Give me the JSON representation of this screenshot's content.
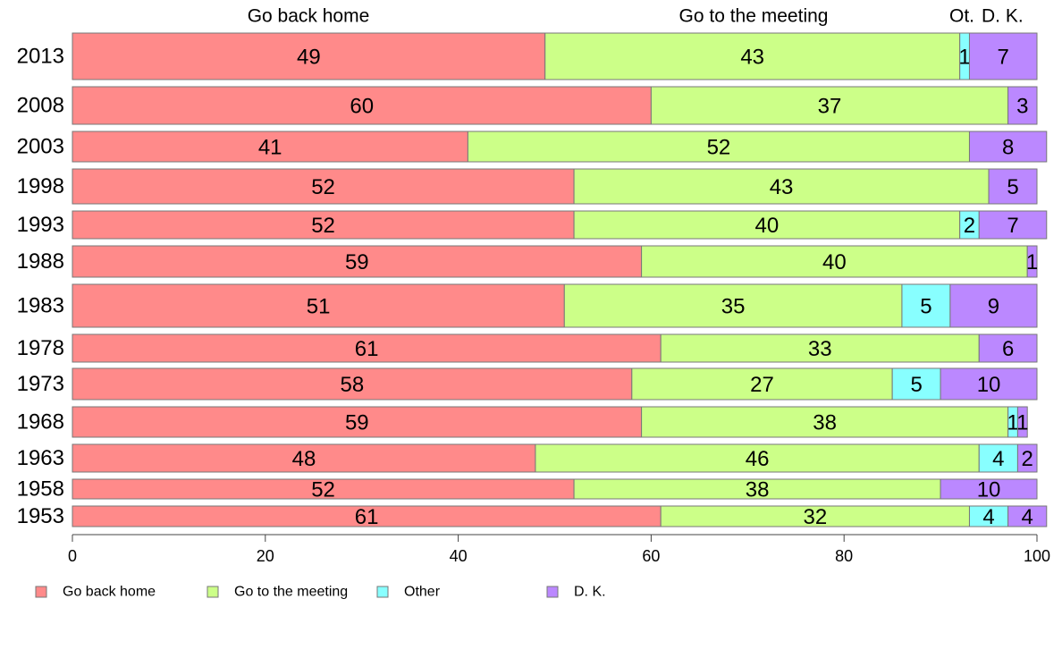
{
  "chart_data": {
    "type": "bar",
    "orientation": "horizontal",
    "stacked": true,
    "categories": [
      "2013",
      "2008",
      "2003",
      "1998",
      "1993",
      "1988",
      "1983",
      "1978",
      "1973",
      "1968",
      "1963",
      "1958",
      "1953"
    ],
    "series": [
      {
        "name": "Go back home",
        "color": "#ff8a8a",
        "values": [
          49,
          60,
          41,
          52,
          52,
          59,
          51,
          61,
          58,
          59,
          48,
          52,
          61
        ]
      },
      {
        "name": "Go to the meeting",
        "color": "#ccff88",
        "values": [
          43,
          37,
          52,
          43,
          40,
          40,
          35,
          33,
          27,
          38,
          46,
          38,
          32
        ]
      },
      {
        "name": "Other",
        "color": "#88ffff",
        "values": [
          1,
          0,
          0,
          0,
          2,
          0,
          5,
          0,
          5,
          1,
          4,
          0,
          4
        ]
      },
      {
        "name": "D. K.",
        "color": "#bb88ff",
        "values": [
          7,
          3,
          8,
          5,
          7,
          1,
          9,
          6,
          10,
          1,
          2,
          10,
          4
        ]
      }
    ],
    "top_labels": [
      "Go back home",
      "Go to the meeting",
      "Ot.",
      "D. K."
    ],
    "xlim": [
      0,
      100
    ],
    "xticks": [
      0,
      20,
      40,
      60,
      80,
      100
    ],
    "legend": "bottom",
    "grid": false
  }
}
